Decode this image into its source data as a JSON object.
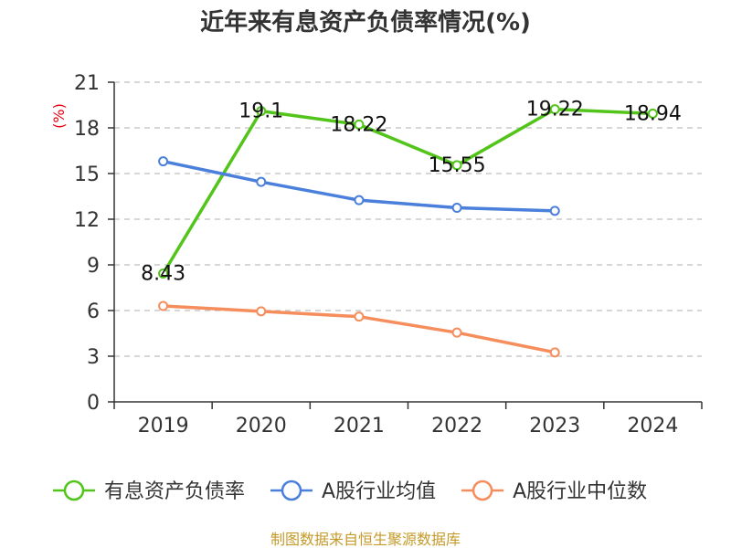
{
  "chart_data": {
    "type": "line",
    "title": "近年来有息资产负债率情况(%)",
    "ylabel": "(%)",
    "xlabel": "",
    "categories": [
      "2019",
      "2020",
      "2021",
      "2022",
      "2023",
      "2024"
    ],
    "ylim": [
      0,
      21
    ],
    "yticks": [
      0,
      3,
      6,
      9,
      12,
      15,
      18,
      21
    ],
    "grid": true,
    "legend_position": "bottom",
    "series": [
      {
        "name": "有息资产负债率",
        "color": "#52c41a",
        "values": [
          8.43,
          19.1,
          18.22,
          15.55,
          19.22,
          18.94
        ],
        "labels": [
          "8.43",
          "19.1",
          "18.22",
          "15.55",
          "19.22",
          "18.94"
        ]
      },
      {
        "name": "A股行业均值",
        "color": "#4a7fdb",
        "values": [
          15.8,
          14.45,
          13.25,
          12.75,
          12.55,
          null
        ]
      },
      {
        "name": "A股行业中位数",
        "color": "#f58d5c",
        "values": [
          6.3,
          5.95,
          5.6,
          4.55,
          3.25,
          null
        ]
      }
    ],
    "source": "制图数据来自恒生聚源数据库"
  }
}
